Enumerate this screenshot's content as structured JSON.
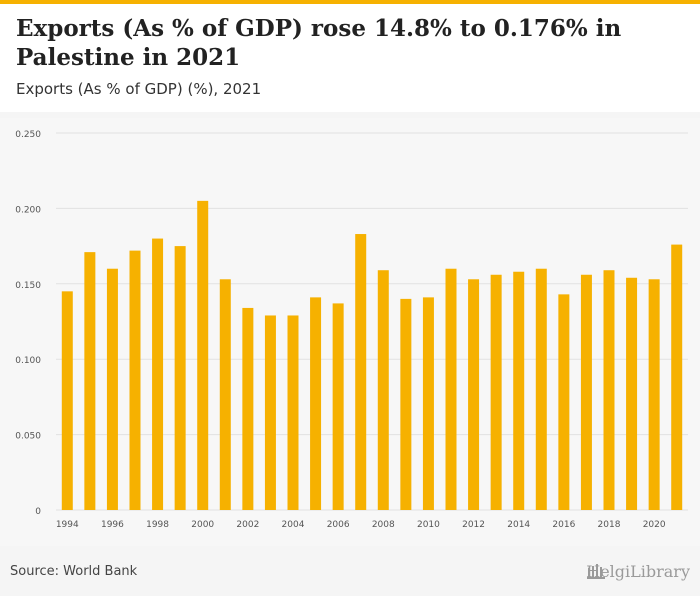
{
  "header": {
    "title": "Exports (As % of GDP) rose 14.8% to 0.176% in Palestine in 2021",
    "subtitle": "Exports (As % of GDP) (%), 2021"
  },
  "footer": {
    "source": "Source: World Bank",
    "logo_text": "HelgiLibrary",
    "logo_icon": "library-building-icon"
  },
  "colors": {
    "bar": "#f6b100",
    "accent": "#f6b100",
    "grid": "#e2e2e2"
  },
  "chart_data": {
    "type": "bar",
    "categories": [
      "1994",
      "1995",
      "1996",
      "1997",
      "1998",
      "1999",
      "2000",
      "2001",
      "2002",
      "2003",
      "2004",
      "2005",
      "2006",
      "2007",
      "2008",
      "2009",
      "2010",
      "2011",
      "2012",
      "2013",
      "2014",
      "2015",
      "2016",
      "2017",
      "2018",
      "2019",
      "2020",
      "2021"
    ],
    "x_tick_labels": [
      "1994",
      "1996",
      "1998",
      "2000",
      "2002",
      "2004",
      "2006",
      "2008",
      "2010",
      "2012",
      "2014",
      "2016",
      "2018",
      "2020"
    ],
    "values": [
      0.145,
      0.171,
      0.16,
      0.172,
      0.18,
      0.175,
      0.205,
      0.153,
      0.134,
      0.129,
      0.129,
      0.141,
      0.137,
      0.183,
      0.159,
      0.14,
      0.141,
      0.16,
      0.153,
      0.156,
      0.158,
      0.16,
      0.143,
      0.156,
      0.159,
      0.154,
      0.153,
      0.176
    ],
    "y_ticks": [
      0,
      0.05,
      0.1,
      0.15,
      0.2,
      0.25
    ],
    "y_tick_labels": [
      "0",
      "0.050",
      "0.100",
      "0.150",
      "0.200",
      "0.250"
    ],
    "ylim": [
      0,
      0.25
    ],
    "title": "",
    "xlabel": "",
    "ylabel": "",
    "grid": true
  }
}
